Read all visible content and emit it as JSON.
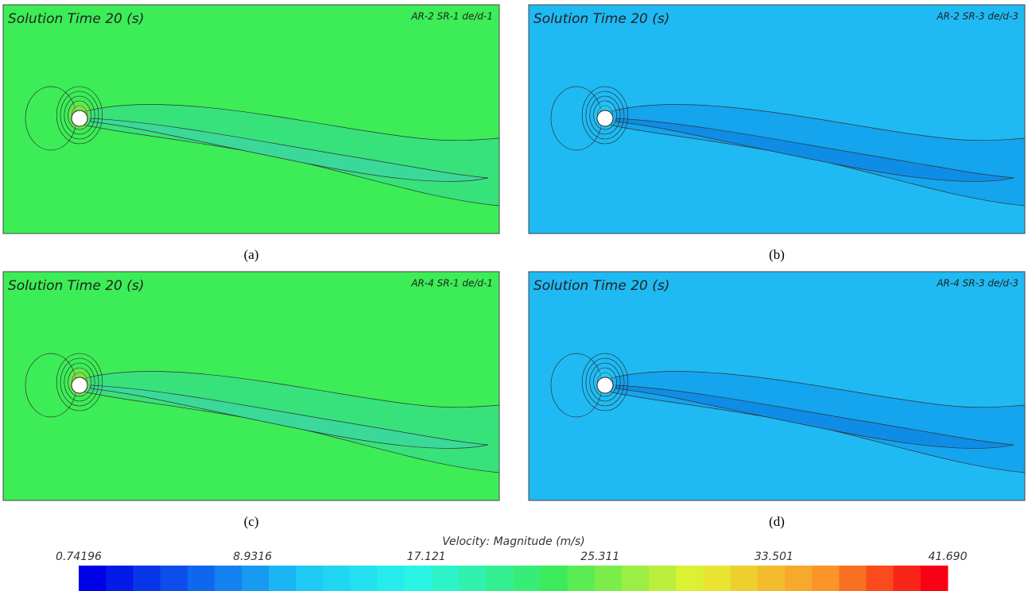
{
  "panels": [
    {
      "title": "Solution Time 20 (s)",
      "label": "AR-2  SR-1  de/d-1",
      "caption": "(a)"
    },
    {
      "title": "Solution Time 20 (s)",
      "label": "AR-2  SR-3  de/d-3",
      "caption": "(b)"
    },
    {
      "title": "Solution Time 20 (s)",
      "label": "AR-4  SR-1  de/d-1",
      "caption": "(c)"
    },
    {
      "title": "Solution Time 20 (s)",
      "label": "AR-4  SR-3  de/d-3",
      "caption": "(d)"
    }
  ],
  "colorbar": {
    "title": "Velocity: Magnitude (m/s)",
    "ticks": [
      "0.74196",
      "8.9316",
      "17.121",
      "25.311",
      "33.501",
      "41.690"
    ]
  }
}
